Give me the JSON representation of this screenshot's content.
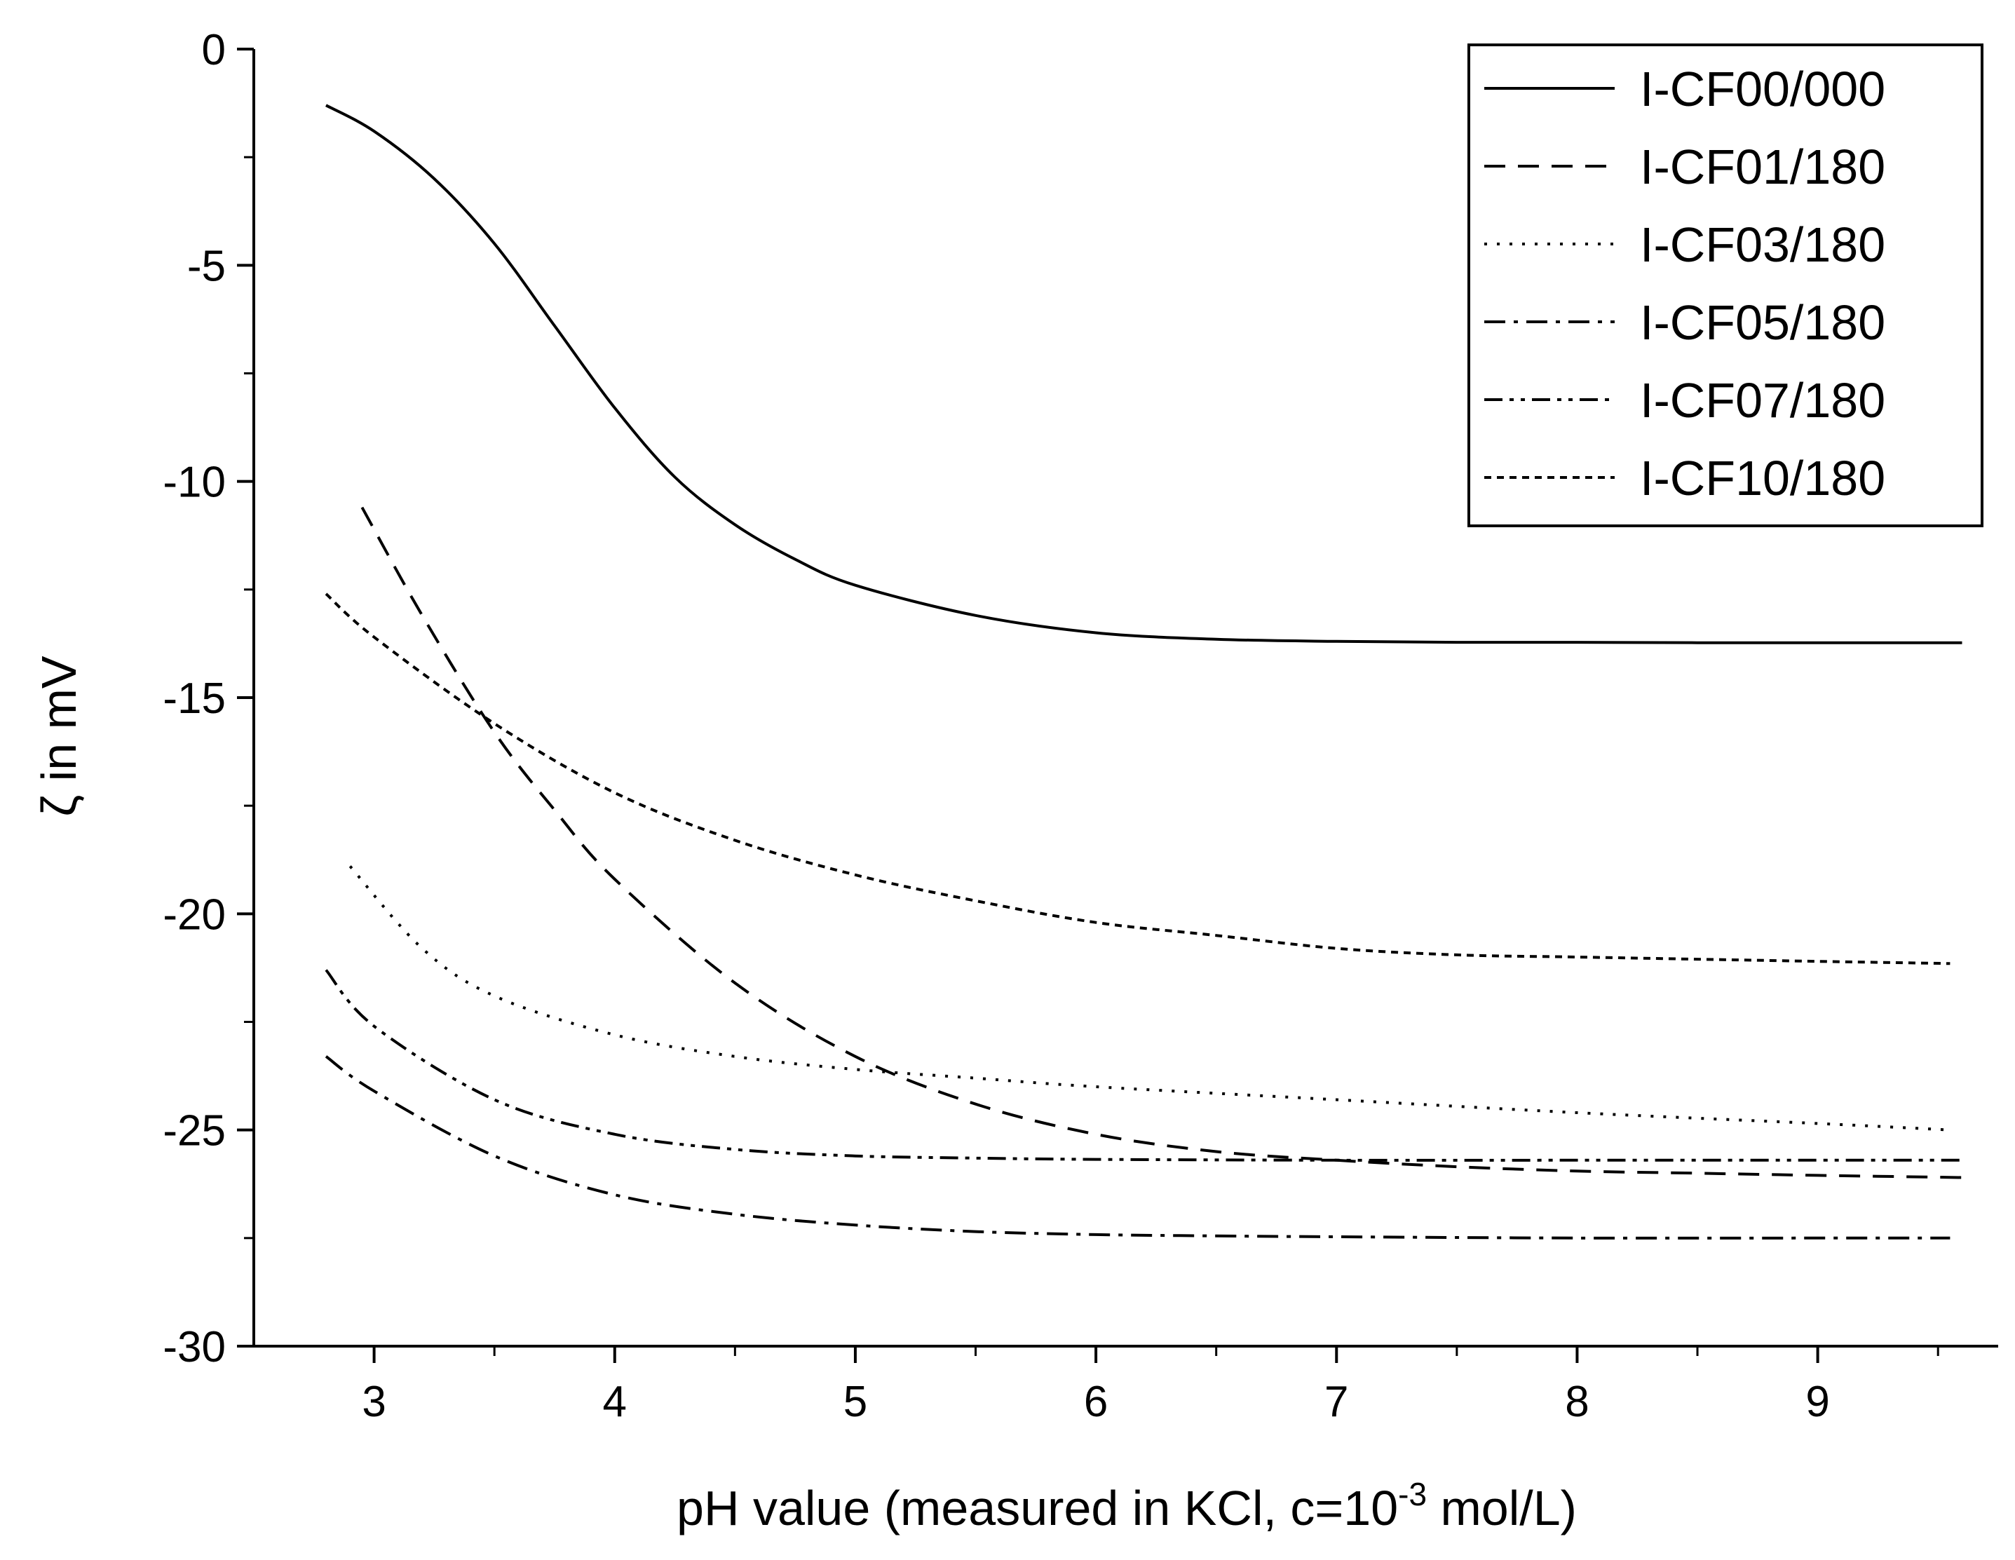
{
  "chart_data": {
    "type": "line",
    "xlabel": "pH value (measured in KCl, c=10",
    "xlabel_sup": "-3",
    "xlabel_end": " mol/L)",
    "ylabel": "ζ in mV",
    "xlim": [
      2.5,
      9.75
    ],
    "ylim": [
      -30,
      0
    ],
    "x_ticks": [
      3,
      4,
      5,
      6,
      7,
      8,
      9
    ],
    "x_minor_ticks": [
      3.5,
      4.5,
      5.5,
      6.5,
      7.5,
      8.5,
      9.5
    ],
    "y_ticks": [
      0,
      -5,
      -10,
      -15,
      -20,
      -25,
      -30
    ],
    "y_minor_ticks": [
      -2.5,
      -7.5,
      -12.5,
      -17.5,
      -22.5,
      -27.5
    ],
    "legend_position": "top-right",
    "line_color": "#000000",
    "series": [
      {
        "name": "I-CF00/000",
        "style": "solid",
        "x": [
          2.8,
          3.0,
          3.25,
          3.5,
          3.75,
          4.0,
          4.25,
          4.5,
          4.75,
          5.0,
          5.5,
          6.0,
          6.5,
          7.0,
          7.5,
          8.0,
          8.5,
          9.0,
          9.6
        ],
        "y": [
          -1.3,
          -1.9,
          -3.0,
          -4.5,
          -6.4,
          -8.3,
          -9.9,
          -11.0,
          -11.8,
          -12.4,
          -13.1,
          -13.5,
          -13.65,
          -13.7,
          -13.72,
          -13.72,
          -13.73,
          -13.73,
          -13.73
        ]
      },
      {
        "name": "I-CF01/180",
        "style": "dashed",
        "x": [
          2.95,
          3.2,
          3.5,
          3.75,
          4.0,
          4.5,
          5.0,
          5.5,
          6.0,
          6.5,
          7.0,
          7.5,
          8.0,
          8.5,
          9.0,
          9.6
        ],
        "y": [
          -10.6,
          -13.1,
          -15.8,
          -17.6,
          -19.2,
          -21.6,
          -23.3,
          -24.4,
          -25.1,
          -25.5,
          -25.7,
          -25.85,
          -25.95,
          -26.0,
          -26.05,
          -26.1
        ]
      },
      {
        "name": "I-CF03/180",
        "style": "dotted",
        "x": [
          2.9,
          3.2,
          3.5,
          4.0,
          4.5,
          5.0,
          5.5,
          6.0,
          7.0,
          8.0,
          9.0,
          9.55
        ],
        "y": [
          -18.9,
          -20.8,
          -21.9,
          -22.8,
          -23.3,
          -23.6,
          -23.8,
          -24.0,
          -24.3,
          -24.6,
          -24.85,
          -25.0
        ]
      },
      {
        "name": "I-CF05/180",
        "style": "dashdot",
        "x": [
          2.8,
          3.0,
          3.5,
          4.0,
          4.5,
          5.0,
          5.5,
          6.0,
          6.5,
          7.0,
          8.0,
          9.0,
          9.55
        ],
        "y": [
          -23.3,
          -24.1,
          -25.6,
          -26.5,
          -26.95,
          -27.2,
          -27.35,
          -27.42,
          -27.45,
          -27.47,
          -27.5,
          -27.5,
          -27.5
        ]
      },
      {
        "name": "I-CF07/180",
        "style": "dashdotdot",
        "x": [
          2.8,
          3.0,
          3.5,
          4.0,
          4.5,
          5.0,
          5.5,
          6.0,
          7.0,
          8.0,
          9.0,
          9.6
        ],
        "y": [
          -21.3,
          -22.6,
          -24.3,
          -25.1,
          -25.45,
          -25.6,
          -25.65,
          -25.68,
          -25.7,
          -25.7,
          -25.7,
          -25.7
        ]
      },
      {
        "name": "I-CF10/180",
        "style": "shortdash",
        "x": [
          2.8,
          3.0,
          3.5,
          4.0,
          4.5,
          5.0,
          5.5,
          6.0,
          6.5,
          7.0,
          7.5,
          8.0,
          8.5,
          9.0,
          9.55
        ],
        "y": [
          -12.6,
          -13.6,
          -15.6,
          -17.2,
          -18.3,
          -19.1,
          -19.7,
          -20.2,
          -20.5,
          -20.8,
          -20.95,
          -21.0,
          -21.05,
          -21.1,
          -21.15
        ]
      }
    ]
  }
}
